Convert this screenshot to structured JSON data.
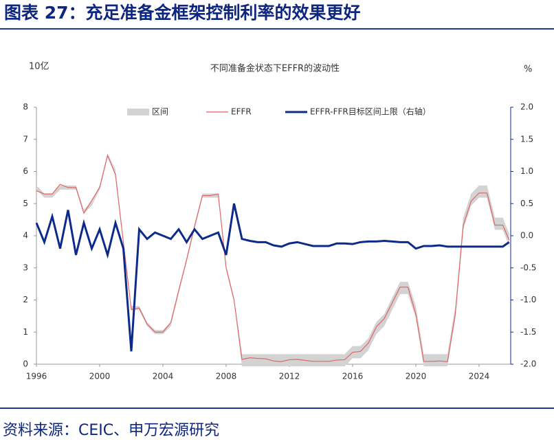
{
  "header": {
    "title": "图表 27：充足准备金框架控制利率的效果更好"
  },
  "footer": {
    "source": "资料来源：CEIC、申万宏源研究"
  },
  "chart_data": {
    "type": "line",
    "title": "不同准备金状态下EFFR的波动性",
    "ylabel": "10亿",
    "y2label": "%",
    "x": [
      1996.0,
      1996.5,
      1997.0,
      1997.5,
      1998.0,
      1998.5,
      1999.0,
      1999.5,
      2000.0,
      2000.5,
      2001.0,
      2001.5,
      2002.0,
      2002.5,
      2003.0,
      2003.5,
      2004.0,
      2004.5,
      2005.0,
      2005.5,
      2006.0,
      2006.5,
      2007.0,
      2007.5,
      2008.0,
      2008.5,
      2009.0,
      2009.5,
      2010.0,
      2010.5,
      2011.0,
      2011.5,
      2012.0,
      2012.5,
      2013.0,
      2013.5,
      2014.0,
      2014.5,
      2015.0,
      2015.5,
      2016.0,
      2016.5,
      2017.0,
      2017.5,
      2018.0,
      2018.5,
      2019.0,
      2019.5,
      2020.0,
      2020.5,
      2021.0,
      2021.5,
      2022.0,
      2022.5,
      2023.0,
      2023.5,
      2024.0,
      2024.5,
      2025.0,
      2025.5,
      2025.9
    ],
    "series": [
      {
        "name": "区间",
        "color": "#d3d3d3",
        "values": [
          5.5,
          5.25,
          5.25,
          5.5,
          5.5,
          5.5,
          4.75,
          5.0,
          5.5,
          6.5,
          6.0,
          3.75,
          1.75,
          1.75,
          1.25,
          1.0,
          1.0,
          1.25,
          2.25,
          3.25,
          4.25,
          5.25,
          5.25,
          5.25,
          3.0,
          2.0,
          0.25,
          0.25,
          0.25,
          0.25,
          0.25,
          0.25,
          0.25,
          0.25,
          0.25,
          0.25,
          0.25,
          0.25,
          0.25,
          0.25,
          0.5,
          0.5,
          0.75,
          1.25,
          1.5,
          2.0,
          2.5,
          2.5,
          1.75,
          0.25,
          0.25,
          0.25,
          0.25,
          1.75,
          4.5,
          5.25,
          5.5,
          5.5,
          4.5,
          4.5,
          4.0
        ],
        "lower": [
          5.5,
          5.25,
          5.25,
          5.5,
          5.5,
          5.5,
          4.75,
          5.0,
          5.5,
          6.5,
          6.0,
          3.75,
          1.75,
          1.75,
          1.25,
          1.0,
          1.0,
          1.25,
          2.25,
          3.25,
          4.25,
          5.25,
          5.25,
          5.25,
          3.0,
          2.0,
          0,
          0,
          0,
          0,
          0,
          0,
          0,
          0,
          0,
          0,
          0,
          0,
          0,
          0,
          0.25,
          0.25,
          0.5,
          1.0,
          1.25,
          1.75,
          2.25,
          2.25,
          1.5,
          0,
          0,
          0,
          0,
          1.5,
          4.25,
          5.0,
          5.25,
          5.25,
          4.25,
          4.25,
          3.75
        ]
      },
      {
        "name": "EFFR",
        "color": "#e06565",
        "values": [
          5.4,
          5.3,
          5.3,
          5.6,
          5.5,
          5.5,
          4.7,
          5.1,
          5.5,
          6.5,
          5.9,
          3.8,
          1.7,
          1.75,
          1.25,
          1.0,
          1.0,
          1.3,
          2.3,
          3.25,
          4.3,
          5.25,
          5.25,
          5.3,
          3.0,
          2.0,
          0.15,
          0.2,
          0.18,
          0.17,
          0.1,
          0.08,
          0.14,
          0.15,
          0.12,
          0.09,
          0.09,
          0.09,
          0.13,
          0.14,
          0.37,
          0.4,
          0.66,
          1.16,
          1.42,
          1.91,
          2.4,
          2.4,
          1.55,
          0.09,
          0.09,
          0.1,
          0.08,
          1.58,
          4.33,
          5.08,
          5.33,
          5.33,
          4.33,
          4.33,
          3.87
        ]
      },
      {
        "name": "EFFR-FFR目标区间上限（右轴）",
        "color": "#0b2a8a",
        "axis": "y2",
        "values": [
          0.2,
          -0.1,
          0.3,
          -0.2,
          0.4,
          -0.3,
          0.2,
          -0.2,
          0.1,
          -0.3,
          0.2,
          -0.2,
          -1.8,
          0.1,
          -0.05,
          0.05,
          0.0,
          -0.05,
          0.1,
          -0.1,
          0.1,
          -0.05,
          0.0,
          0.05,
          -0.3,
          0.5,
          -0.05,
          -0.08,
          -0.1,
          -0.1,
          -0.15,
          -0.17,
          -0.12,
          -0.1,
          -0.13,
          -0.16,
          -0.16,
          -0.16,
          -0.12,
          -0.12,
          -0.13,
          -0.1,
          -0.09,
          -0.09,
          -0.08,
          -0.09,
          -0.1,
          -0.1,
          -0.2,
          -0.16,
          -0.16,
          -0.15,
          -0.17,
          -0.17,
          -0.17,
          -0.17,
          -0.17,
          -0.17,
          -0.17,
          -0.17,
          -0.1
        ]
      }
    ],
    "xlim": [
      1996,
      2026
    ],
    "xticks": [
      1996,
      2000,
      2004,
      2008,
      2012,
      2016,
      2020,
      2024
    ],
    "ylim": [
      0,
      8
    ],
    "yticks": [
      0,
      1,
      2,
      3,
      4,
      5,
      6,
      7,
      8
    ],
    "y2lim": [
      -2,
      2
    ],
    "y2ticks": [
      {
        "value": -2,
        "label": "-2.0"
      },
      -1.5,
      {
        "value": -1,
        "label": "-1.0"
      },
      -0.5,
      {
        "value": 0,
        "label": "0.0"
      },
      0.5,
      {
        "value": 1,
        "label": "1.0"
      },
      1.5,
      {
        "value": 2,
        "label": "2.0"
      }
    ]
  }
}
